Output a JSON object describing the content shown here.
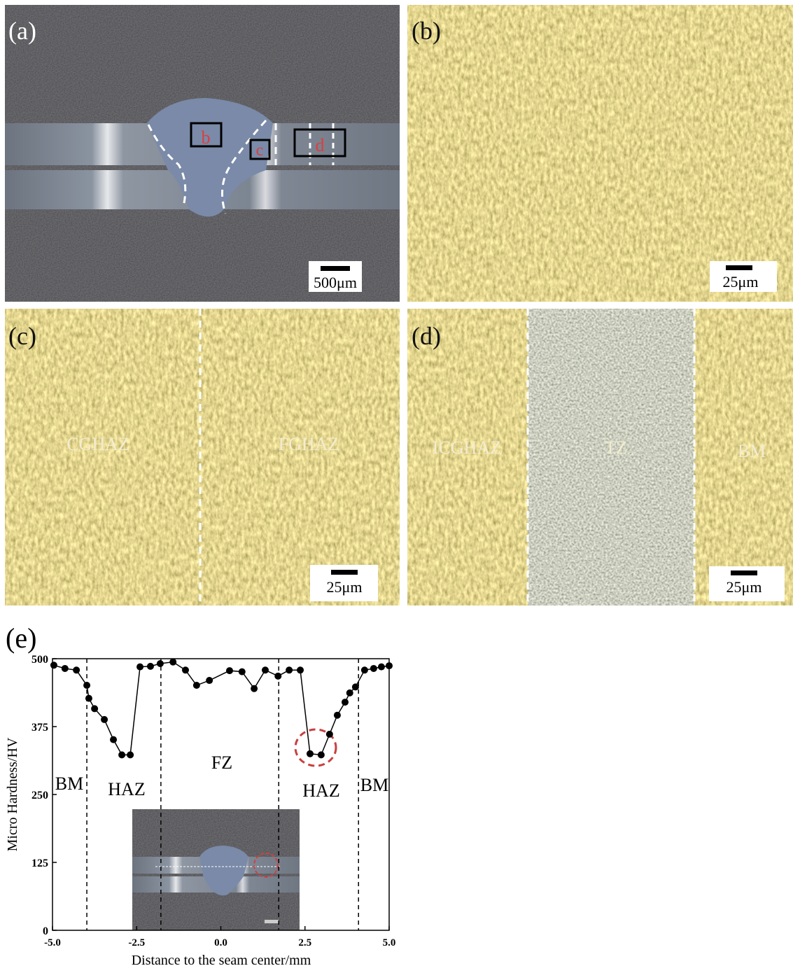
{
  "panels": [
    {
      "label": "(a)",
      "scale_bar": "500μm",
      "regions": [
        "b",
        "c",
        "d"
      ]
    },
    {
      "label": "(b)",
      "scale_bar": "25μm"
    },
    {
      "label": "(c)",
      "scale_bar": "25μm",
      "zones": [
        "CGHAZ",
        "FGHAZ"
      ]
    },
    {
      "label": "(d)",
      "scale_bar": "25μm",
      "zones": [
        "ICGHAZ",
        "TZ",
        "BM"
      ]
    }
  ],
  "chart_data": {
    "type": "line",
    "panel_label": "(e)",
    "x_label": "Distance to the seam center/mm",
    "y_label": "Micro Hardness/HV",
    "x": [
      -4.96,
      -4.63,
      -4.29,
      -3.98,
      -3.92,
      -3.75,
      -3.46,
      -3.19,
      -2.94,
      -2.69,
      -2.4,
      -2.09,
      -1.8,
      -1.42,
      -1.05,
      -0.72,
      -0.34,
      0.26,
      0.63,
      0.99,
      1.32,
      1.7,
      2.03,
      2.36,
      2.65,
      2.98,
      3.23,
      3.46,
      3.69,
      3.83,
      4.0,
      4.27,
      4.54,
      4.77,
      5.0
    ],
    "series": [
      {
        "color": "#000000",
        "values": [
          488,
          482,
          479,
          451,
          427,
          408,
          388,
          351,
          323,
          323,
          485,
          486,
          491,
          494,
          479,
          451,
          460,
          478,
          476,
          445,
          479,
          468,
          479,
          479,
          325,
          323,
          361,
          396,
          420,
          437,
          448,
          479,
          482,
          485,
          487
        ]
      }
    ],
    "xlim": [
      -5,
      5
    ],
    "ylim": [
      0,
      500
    ],
    "xticks": [
      {
        "value": -5,
        "label": "-5.0"
      },
      {
        "value": -2.5,
        "label": "-2.5"
      },
      {
        "value": 0,
        "label": "0.0"
      },
      {
        "value": 2.5,
        "label": "2.5"
      },
      {
        "value": 5,
        "label": "5.0"
      }
    ],
    "yticks": [
      0,
      125,
      250,
      375,
      500
    ],
    "zone_boundaries": [
      -3.98,
      -1.78,
      1.72,
      4.09
    ],
    "zone_labels": [
      "BM",
      "HAZ",
      "FZ",
      "HAZ",
      "BM"
    ]
  }
}
